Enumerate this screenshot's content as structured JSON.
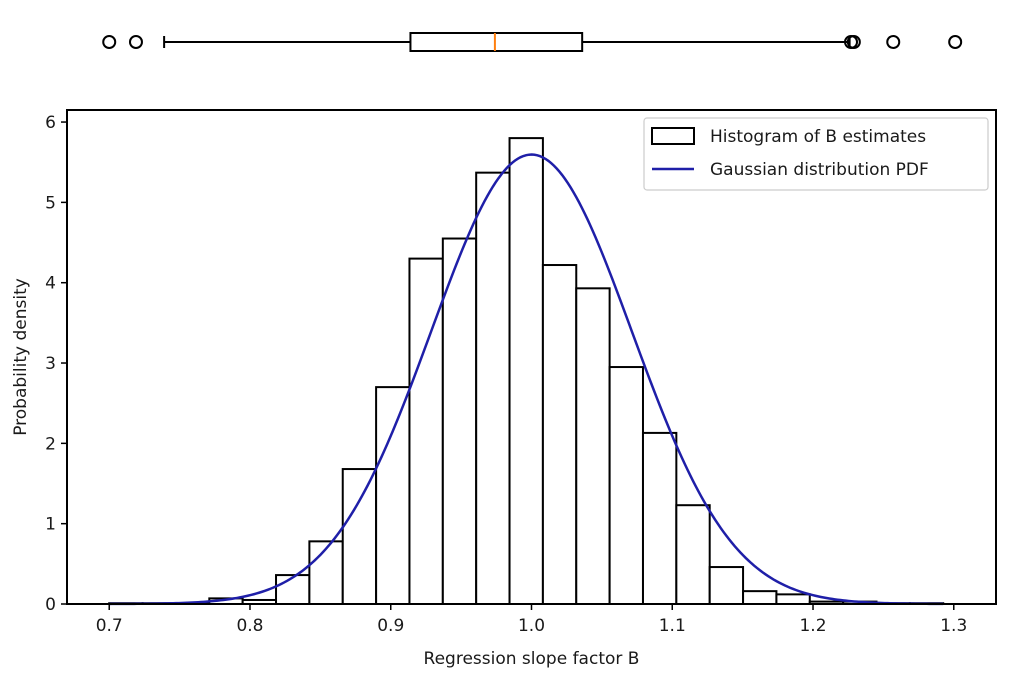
{
  "chart_data": [
    {
      "type": "boxplot",
      "orientation": "horizontal",
      "whisker_low": 0.739,
      "q1": 0.914,
      "median": 0.974,
      "q3": 1.036,
      "whisker_high": 1.226,
      "outliers": [
        0.7,
        0.719,
        1.227,
        1.229,
        1.257,
        1.301
      ],
      "colors": {
        "box": "#000000",
        "median": "#ff7f0e"
      }
    },
    {
      "type": "histogram",
      "title": "",
      "xlabel": "Regression slope factor B",
      "ylabel": "Probability density",
      "xlim": [
        0.67,
        1.33
      ],
      "ylim": [
        0,
        6.15
      ],
      "x_ticks": [
        "0.7",
        "0.8",
        "0.9",
        "1.0",
        "1.1",
        "1.2",
        "1.3"
      ],
      "x_tick_values": [
        0.7,
        0.8,
        0.9,
        1.0,
        1.1,
        1.2,
        1.3
      ],
      "y_ticks": [
        "0",
        "1",
        "2",
        "3",
        "4",
        "5",
        "6"
      ],
      "y_tick_values": [
        0,
        1,
        2,
        3,
        4,
        5,
        6
      ],
      "grid": false,
      "legend_position": "top-right",
      "legend": [
        "Histogram of B estimates",
        "Gaussian distribution PDF"
      ],
      "bin_edges": [
        0.7,
        0.7237,
        0.7474,
        0.7711,
        0.7948,
        0.8185,
        0.8422,
        0.8659,
        0.8896,
        0.9133,
        0.937,
        0.9607,
        0.9844,
        1.0081,
        1.0318,
        1.0555,
        1.0792,
        1.1029,
        1.1266,
        1.1503,
        1.174,
        1.1977,
        1.2214,
        1.2451,
        1.2688,
        1.2925
      ],
      "densities": [
        0.01,
        0.01,
        0.01,
        0.07,
        0.05,
        0.36,
        0.78,
        1.68,
        2.7,
        4.3,
        4.55,
        5.37,
        5.8,
        4.22,
        3.93,
        2.95,
        2.13,
        1.23,
        0.46,
        0.16,
        0.12,
        0.03,
        0.03,
        0.01,
        0.01
      ],
      "pdf": {
        "mean": 1.0,
        "std": 0.0713,
        "color": "#1f1fa8"
      },
      "colors": {
        "bar_fill": "#ffffff",
        "bar_edge": "#000000"
      }
    }
  ]
}
